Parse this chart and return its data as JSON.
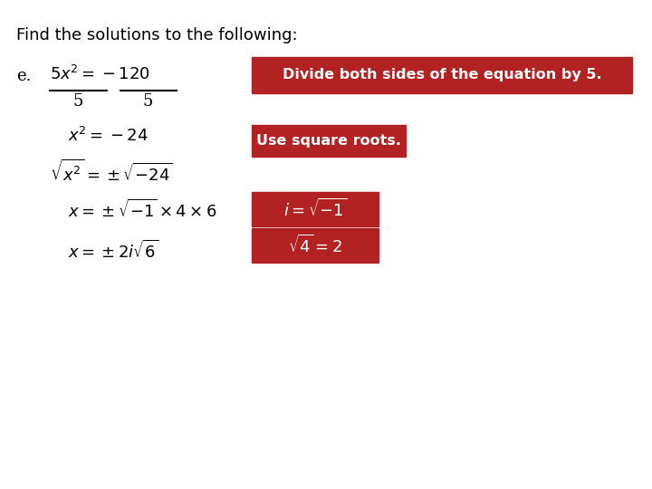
{
  "background_color": "#ffffff",
  "title_text": "Find the solutions to the following:",
  "red_color": "#b22222",
  "white_color": "#ffffff",
  "black_color": "#000000",
  "box1_text": "Divide both sides of the equation by 5.",
  "box2_text": "Use square roots."
}
